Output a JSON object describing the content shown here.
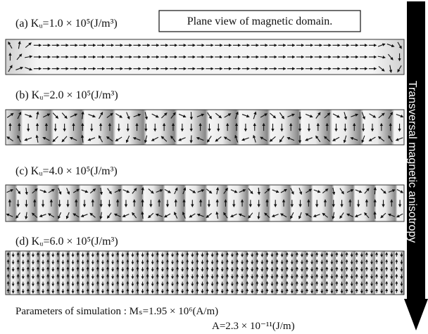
{
  "panels": [
    {
      "label": "(a) Kᵤ=1.0 × 10⁵(J/m³)"
    },
    {
      "label": "(b) Kᵤ=2.0 × 10⁵(J/m³)"
    },
    {
      "label": "(c) Kᵤ=4.0 × 10⁵(J/m³)"
    },
    {
      "label": "(d) Kᵤ=6.0 × 10⁵(J/m³)"
    }
  ],
  "caption_box": "Plane view of magnetic domain.",
  "side_arrow_label": "Transversal magnetic anisotropy",
  "parameters": {
    "line1": "Parameters of simulation : Mₛ=1.95 × 10⁶(A/m)",
    "line2": "A=2.3 × 10⁻¹¹(J/m)"
  }
}
